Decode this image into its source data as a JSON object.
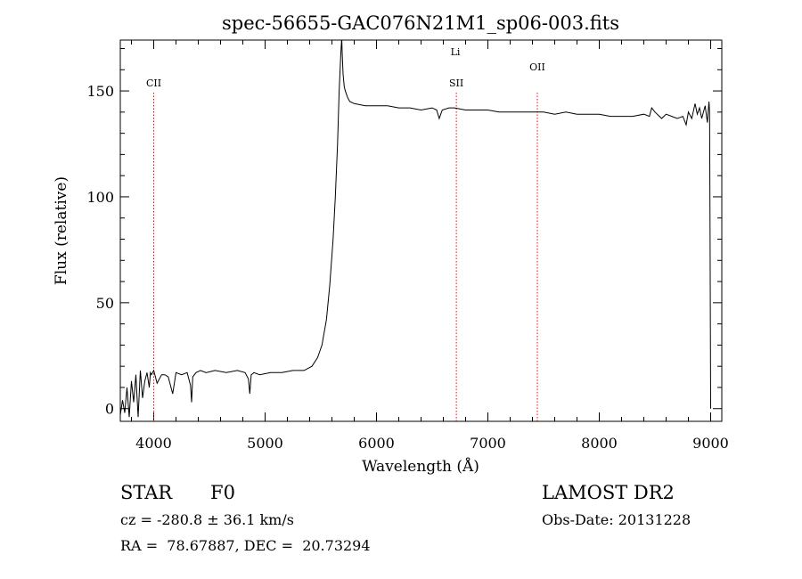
{
  "chart_data": {
    "type": "line",
    "title": "spec-56655-GAC076N21M1_sp06-003.fits",
    "xlabel": "Wavelength (Å)",
    "ylabel": "Flux (relative)",
    "xlim": [
      3700,
      9100
    ],
    "ylim": [
      -6,
      174
    ],
    "x_ticks": [
      4000,
      5000,
      6000,
      7000,
      8000,
      9000
    ],
    "x_tick_labels": [
      "4000",
      "5000",
      "6000",
      "7000",
      "8000",
      "9000"
    ],
    "y_ticks": [
      0,
      50,
      100,
      150
    ],
    "y_tick_labels": [
      "0",
      "50",
      "100",
      "150"
    ],
    "grid": false,
    "series": [
      {
        "line_color": "#000000",
        "x": [
          3700,
          3720,
          3740,
          3760,
          3780,
          3800,
          3820,
          3840,
          3860,
          3880,
          3900,
          3920,
          3940,
          3960,
          3970,
          3980,
          4000,
          4030,
          4070,
          4100,
          4130,
          4170,
          4200,
          4250,
          4300,
          4330,
          4340,
          4350,
          4380,
          4420,
          4470,
          4550,
          4650,
          4750,
          4820,
          4850,
          4862,
          4875,
          4900,
          4950,
          5050,
          5150,
          5250,
          5350,
          5420,
          5470,
          5510,
          5550,
          5580,
          5610,
          5630,
          5650,
          5665,
          5680,
          5688,
          5692,
          5700,
          5710,
          5720,
          5740,
          5760,
          5800,
          5900,
          6000,
          6100,
          6200,
          6300,
          6400,
          6500,
          6540,
          6563,
          6590,
          6650,
          6700,
          6800,
          6900,
          7000,
          7100,
          7200,
          7300,
          7400,
          7500,
          7600,
          7700,
          7800,
          7900,
          8000,
          8100,
          8200,
          8300,
          8400,
          8450,
          8470,
          8500,
          8540,
          8560,
          8600,
          8650,
          8700,
          8750,
          8780,
          8800,
          8830,
          8860,
          8880,
          8900,
          8920,
          8950,
          8970,
          8985,
          8990,
          8995,
          9000
        ],
        "values": [
          -3,
          4,
          -2,
          10,
          -4,
          13,
          3,
          16,
          -4,
          18,
          5,
          13,
          17,
          10,
          17,
          16,
          18,
          12,
          16,
          16,
          15,
          7,
          17,
          16,
          17,
          11,
          3,
          15,
          17,
          18,
          17,
          18,
          17,
          18,
          17,
          14,
          7,
          16,
          17,
          16,
          17,
          17,
          18,
          18,
          20,
          24,
          30,
          42,
          58,
          80,
          100,
          125,
          150,
          168,
          175,
          168,
          158,
          152,
          150,
          147,
          145,
          144,
          143,
          143,
          143,
          142,
          142,
          141,
          142,
          141,
          137,
          141,
          142,
          142,
          141,
          141,
          141,
          140,
          140,
          140,
          140,
          140,
          139,
          140,
          139,
          139,
          139,
          138,
          138,
          138,
          139,
          138,
          142,
          140,
          138,
          137,
          139,
          138,
          137,
          138,
          134,
          140,
          137,
          144,
          139,
          142,
          137,
          143,
          135,
          145,
          140,
          75,
          0
        ]
      }
    ],
    "lines": [
      {
        "label": "CII",
        "x": 4000,
        "color": "#ff0000"
      },
      {
        "label": "SII",
        "x": 6717,
        "color": "#ff0000"
      },
      {
        "label": "Li",
        "x": 6708,
        "color": "#ff0000"
      },
      {
        "label": "OII",
        "x": 7444,
        "color": "#ff0000"
      }
    ]
  },
  "info": {
    "object_class": "STAR",
    "subclass": "F0",
    "survey": "LAMOST DR2",
    "redshift": "cz = -280.8 ± 36.1 km/s",
    "obs_date": "Obs-Date: 20131228",
    "coords": "RA =  78.67887, DEC =  20.73294"
  }
}
